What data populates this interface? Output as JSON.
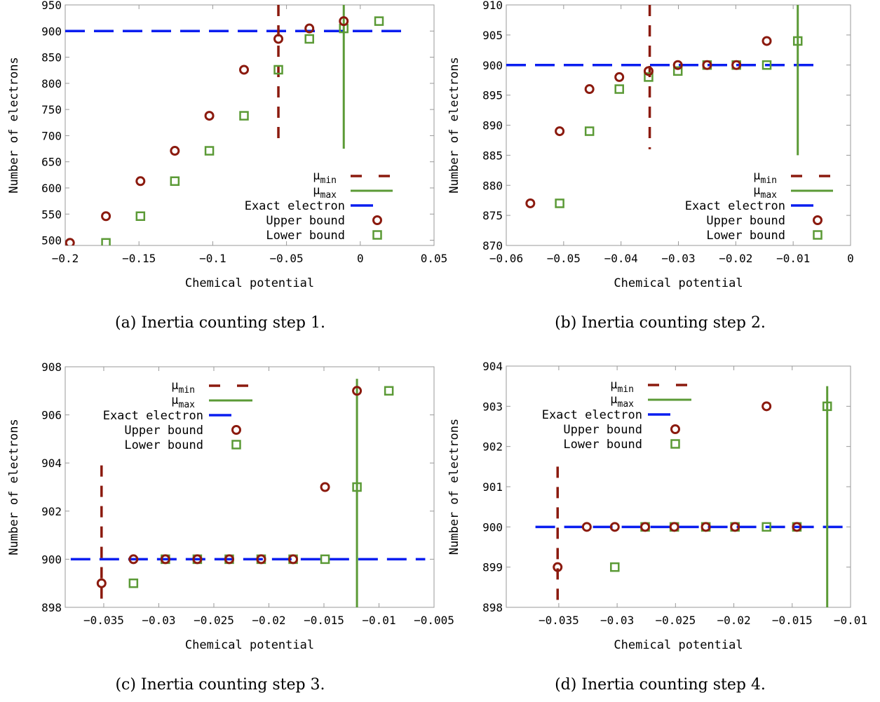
{
  "colors": {
    "mu_min": "#8b1a0e",
    "mu_max": "#5b9a36",
    "exact": "#0a1ef0",
    "upper": "#8b1a0e",
    "lower": "#5b9a36"
  },
  "legend_labels": {
    "mu_min": "μmin",
    "mu_max": "μmax",
    "exact": "Exact electron",
    "upper": "Upper bound",
    "lower": "Lower bound"
  },
  "chart_data": [
    {
      "type": "scatter",
      "caption": "(a) Inertia counting step 1.",
      "xlabel": "Chemical potential",
      "ylabel": "Number of electrons",
      "xlim": [
        -0.2,
        0.05
      ],
      "ylim": [
        490,
        950
      ],
      "xticks": [
        -0.2,
        -0.15,
        -0.1,
        -0.05,
        0,
        0.05
      ],
      "xtick_labels": [
        "−0.2",
        "−0.15",
        "−0.1",
        "−0.05",
        "0",
        "0.05"
      ],
      "yticks": [
        500,
        550,
        600,
        650,
        700,
        750,
        800,
        850,
        900,
        950
      ],
      "ytick_labels": [
        "500",
        "550",
        "600",
        "650",
        "700",
        "750",
        "800",
        "850",
        "900",
        "950"
      ],
      "legend_position": "bottom-right",
      "legend_top": false,
      "exact_electron": 900,
      "exact_range": [
        -0.2,
        0.03
      ],
      "mu_min": {
        "x": -0.0555,
        "y_range": [
          680,
          950
        ]
      },
      "mu_max": {
        "x": -0.0112,
        "y_range": [
          675,
          950
        ]
      },
      "series": [
        {
          "name": "Upper bound",
          "x": [
            -0.1968,
            -0.1724,
            -0.149,
            -0.1257,
            -0.1023,
            -0.0788,
            -0.0555,
            -0.0345,
            -0.0112
          ],
          "y": [
            495,
            546,
            613,
            671,
            738,
            826,
            885,
            905,
            919
          ]
        },
        {
          "name": "Lower bound",
          "x": [
            -0.1724,
            -0.149,
            -0.1257,
            -0.1023,
            -0.0788,
            -0.0555,
            -0.0345,
            -0.0112,
            0.0127
          ],
          "y": [
            495,
            546,
            613,
            671,
            738,
            826,
            885,
            905,
            919
          ]
        }
      ]
    },
    {
      "type": "scatter",
      "caption": "(b) Inertia counting step 2.",
      "xlabel": "Chemical potential",
      "ylabel": "Number of electrons",
      "xlim": [
        -0.06,
        0
      ],
      "ylim": [
        870,
        910
      ],
      "xticks": [
        -0.06,
        -0.05,
        -0.04,
        -0.03,
        -0.02,
        -0.01,
        0
      ],
      "xtick_labels": [
        "−0.06",
        "−0.05",
        "−0.04",
        "−0.03",
        "−0.02",
        "−0.01",
        "0"
      ],
      "yticks": [
        870,
        875,
        880,
        885,
        890,
        895,
        900,
        905,
        910
      ],
      "ytick_labels": [
        "870",
        "875",
        "880",
        "885",
        "890",
        "895",
        "900",
        "905",
        "910"
      ],
      "legend_position": "bottom-right",
      "legend_top": false,
      "exact_electron": 900,
      "exact_range": [
        -0.06,
        -0.005
      ],
      "mu_min": {
        "x": -0.035,
        "y_range": [
          886,
          910
        ]
      },
      "mu_max": {
        "x": -0.0092,
        "y_range": [
          885,
          910
        ]
      },
      "series": [
        {
          "name": "Upper bound",
          "x": [
            -0.0558,
            -0.0507,
            -0.0455,
            -0.0403,
            -0.0352,
            -0.0301,
            -0.025,
            -0.0199,
            -0.0146
          ],
          "y": [
            877,
            889,
            896,
            898,
            899,
            900,
            900,
            900,
            904
          ]
        },
        {
          "name": "Lower bound",
          "x": [
            -0.0507,
            -0.0455,
            -0.0403,
            -0.0352,
            -0.0301,
            -0.025,
            -0.0199,
            -0.0146,
            -0.0092
          ],
          "y": [
            877,
            889,
            896,
            898,
            899,
            900,
            900,
            900,
            904
          ]
        }
      ]
    },
    {
      "type": "scatter",
      "caption": "(c) Inertia counting step 3.",
      "xlabel": "Chemical potential",
      "ylabel": "Number of electrons",
      "xlim": [
        -0.0385,
        -0.005
      ],
      "ylim": [
        898,
        908
      ],
      "xticks": [
        -0.035,
        -0.03,
        -0.025,
        -0.02,
        -0.015,
        -0.01,
        -0.005
      ],
      "xtick_labels": [
        "−0.035",
        "−0.03",
        "−0.025",
        "−0.02",
        "−0.015",
        "−0.01",
        "−0.005"
      ],
      "yticks": [
        898,
        900,
        902,
        904,
        906,
        908
      ],
      "ytick_labels": [
        "898",
        "900",
        "902",
        "904",
        "906",
        "908"
      ],
      "legend_position": "top-left",
      "legend_top": true,
      "exact_electron": 900,
      "exact_range": [
        -0.038,
        -0.0058
      ],
      "mu_min": {
        "x": -0.0352,
        "y_range": [
          898,
          903.9
        ]
      },
      "mu_max": {
        "x": -0.012,
        "y_range": [
          898,
          907.5
        ]
      },
      "series": [
        {
          "name": "Upper bound",
          "x": [
            -0.0352,
            -0.0323,
            -0.0294,
            -0.0265,
            -0.0236,
            -0.0207,
            -0.0178,
            -0.0149,
            -0.012
          ],
          "y": [
            899,
            900,
            900,
            900,
            900,
            900,
            900,
            903,
            907
          ]
        },
        {
          "name": "Lower bound",
          "x": [
            -0.0323,
            -0.0294,
            -0.0265,
            -0.0236,
            -0.0207,
            -0.0178,
            -0.0149,
            -0.012,
            -0.0091
          ],
          "y": [
            899,
            900,
            900,
            900,
            900,
            900,
            900,
            903,
            907
          ]
        }
      ]
    },
    {
      "type": "scatter",
      "caption": "(d) Inertia counting step 4.",
      "xlabel": "Chemical potential",
      "ylabel": "Number of electrons",
      "xlim": [
        -0.0395,
        -0.01
      ],
      "ylim": [
        898,
        904
      ],
      "xticks": [
        -0.035,
        -0.03,
        -0.025,
        -0.02,
        -0.015,
        -0.01
      ],
      "xtick_labels": [
        "−0.035",
        "−0.03",
        "−0.025",
        "−0.02",
        "−0.015",
        "−0.01"
      ],
      "yticks": [
        898,
        899,
        900,
        901,
        902,
        903,
        904
      ],
      "ytick_labels": [
        "898",
        "899",
        "900",
        "901",
        "902",
        "903",
        "904"
      ],
      "legend_position": "top-left",
      "legend_top": true,
      "exact_electron": 900,
      "exact_range": [
        -0.037,
        -0.01
      ],
      "mu_min": {
        "x": -0.0351,
        "y_range": [
          898,
          901.5
        ]
      },
      "mu_max": {
        "x": -0.012,
        "y_range": [
          898,
          903.5
        ]
      },
      "series": [
        {
          "name": "Upper bound",
          "x": [
            -0.0351,
            -0.0326,
            -0.0302,
            -0.0276,
            -0.0251,
            -0.0224,
            -0.0199,
            -0.0172,
            -0.0146
          ],
          "y": [
            899,
            900,
            900,
            900,
            900,
            900,
            900,
            903,
            900
          ]
        },
        {
          "name": "Lower bound",
          "x": [
            -0.0302,
            -0.0276,
            -0.0251,
            -0.0224,
            -0.0199,
            -0.0172,
            -0.0146,
            -0.012
          ],
          "y": [
            899,
            900,
            900,
            900,
            900,
            900,
            900,
            903
          ]
        }
      ]
    }
  ]
}
